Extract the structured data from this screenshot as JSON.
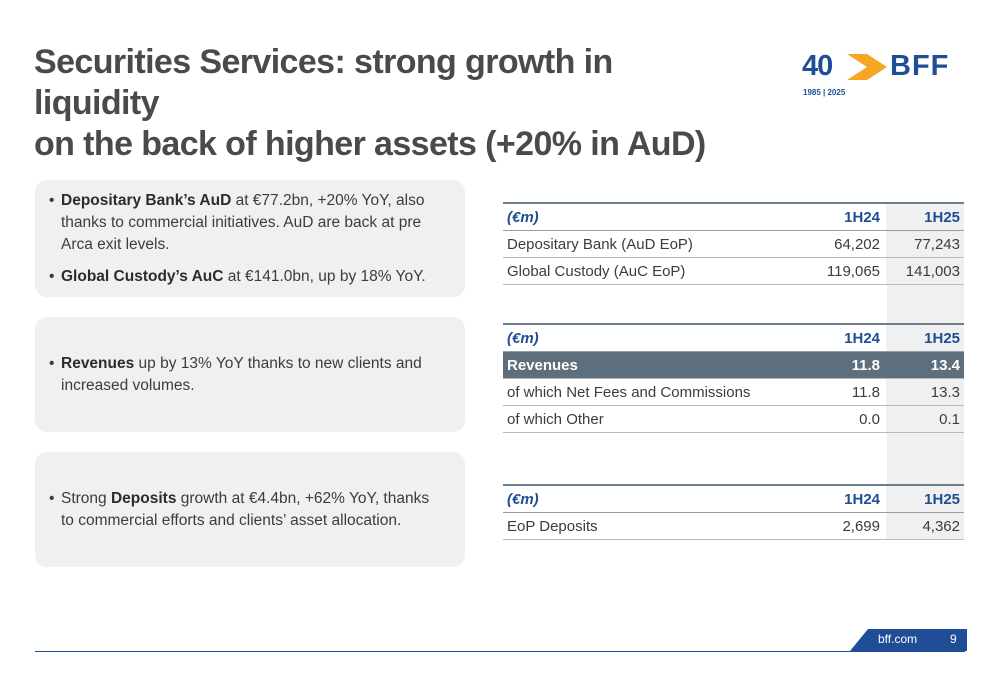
{
  "title": {
    "line1": "Securities Services: strong growth in liquidity",
    "line2": "on the back of higher assets (+20% in AuD)"
  },
  "logo": {
    "number": "40",
    "brand": "BFF",
    "years": "1985 | 2025",
    "icon": "chevron-arrow-icon",
    "colors": {
      "blue": "#1f4e97",
      "orange": "#f5a623"
    }
  },
  "cards": [
    {
      "bullets": [
        {
          "bold": "Depositary Bank’s AuD",
          "rest": " at €77.2bn, +20% YoY, also thanks to commercial initiatives. AuD are back at pre Arca exit levels."
        },
        {
          "bold": "Global Custody’s AuC",
          "rest": " at €141.0bn, up by 18% YoY."
        }
      ]
    },
    {
      "bullets": [
        {
          "pre": "",
          "bold": "Revenues",
          "rest": " up by 13% YoY thanks to new clients and increased volumes."
        }
      ]
    },
    {
      "bullets": [
        {
          "pre": "Strong ",
          "bold": "Deposits",
          "rest": " growth at €4.4bn, +62% YoY, thanks to commercial efforts and clients’ asset allocation."
        }
      ]
    }
  ],
  "table1": {
    "header": [
      "(€m)",
      "1H24",
      "1H25"
    ],
    "rows": [
      [
        "Depositary Bank (AuD EoP)",
        "64,202",
        "77,243"
      ],
      [
        "Global Custody (AuC EoP)",
        "119,065",
        "141,003"
      ]
    ]
  },
  "table2": {
    "header": [
      "(€m)",
      "1H24",
      "1H25"
    ],
    "rows": [
      [
        "Revenues",
        "11.8",
        "13.4"
      ],
      [
        "of which Net Fees and Commissions",
        "11.8",
        "13.3"
      ],
      [
        "of which Other",
        "0.0",
        "0.1"
      ]
    ]
  },
  "table3": {
    "header": [
      "(€m)",
      "1H24",
      "1H25"
    ],
    "rows": [
      [
        "EoP Deposits",
        "2,699",
        "4,362"
      ]
    ]
  },
  "footer": {
    "url": "bff.com",
    "page": "9"
  },
  "colors": {
    "accent": "#1f4e97",
    "highlight_row": "#5d6f7c",
    "card_bg": "#f0f0f0"
  }
}
